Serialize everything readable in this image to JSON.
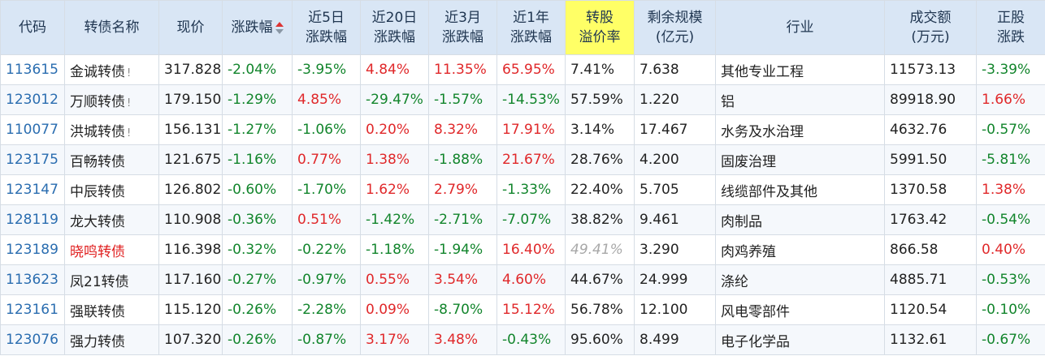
{
  "headers": [
    {
      "key": "code",
      "line1": "代码",
      "line2": ""
    },
    {
      "key": "name",
      "line1": "转债名称",
      "line2": ""
    },
    {
      "key": "price",
      "line1": "现价",
      "line2": ""
    },
    {
      "key": "chg",
      "line1": "涨跌幅",
      "line2": ""
    },
    {
      "key": "chg5d",
      "line1": "近5日",
      "line2": "涨跌幅"
    },
    {
      "key": "chg20d",
      "line1": "近20日",
      "line2": "涨跌幅"
    },
    {
      "key": "chg3m",
      "line1": "近3月",
      "line2": "涨跌幅"
    },
    {
      "key": "chg1y",
      "line1": "近1年",
      "line2": "涨跌幅"
    },
    {
      "key": "premium",
      "line1": "转股",
      "line2": "溢价率"
    },
    {
      "key": "remain",
      "line1": "剩余规模",
      "line2": "(亿元)"
    },
    {
      "key": "industry",
      "line1": "行业",
      "line2": ""
    },
    {
      "key": "volume",
      "line1": "成交额",
      "line2": "(万元)"
    },
    {
      "key": "stockchg",
      "line1": "正股",
      "line2": "涨跌"
    }
  ],
  "rows": [
    {
      "code": "113615",
      "name": "金诚转债",
      "flag": "!",
      "name_red": false,
      "price": "317.828",
      "chg": "-2.04%",
      "chg5d": "-3.95%",
      "chg20d": "4.84%",
      "chg3m": "11.35%",
      "chg1y": "65.95%",
      "premium": "7.41%",
      "premium_italic": false,
      "remain": "7.638",
      "industry": "其他专业工程",
      "volume": "11573.13",
      "stockchg": "-3.39%"
    },
    {
      "code": "123012",
      "name": "万顺转债",
      "flag": "!",
      "name_red": false,
      "price": "179.150",
      "chg": "-1.29%",
      "chg5d": "4.85%",
      "chg20d": "-29.47%",
      "chg3m": "-1.57%",
      "chg1y": "-14.53%",
      "premium": "57.59%",
      "premium_italic": false,
      "remain": "1.220",
      "industry": "铝",
      "volume": "89918.90",
      "stockchg": "1.66%"
    },
    {
      "code": "110077",
      "name": "洪城转债",
      "flag": "!",
      "name_red": false,
      "price": "156.131",
      "chg": "-1.27%",
      "chg5d": "-1.06%",
      "chg20d": "0.20%",
      "chg3m": "8.32%",
      "chg1y": "17.91%",
      "premium": "3.14%",
      "premium_italic": false,
      "remain": "17.467",
      "industry": "水务及水治理",
      "volume": "4632.76",
      "stockchg": "-0.57%"
    },
    {
      "code": "123175",
      "name": "百畅转债",
      "flag": "",
      "name_red": false,
      "price": "121.675",
      "chg": "-1.16%",
      "chg5d": "0.77%",
      "chg20d": "1.38%",
      "chg3m": "-1.88%",
      "chg1y": "21.67%",
      "premium": "28.76%",
      "premium_italic": false,
      "remain": "4.200",
      "industry": "固废治理",
      "volume": "5991.50",
      "stockchg": "-5.81%"
    },
    {
      "code": "123147",
      "name": "中辰转债",
      "flag": "",
      "name_red": false,
      "price": "126.802",
      "chg": "-0.60%",
      "chg5d": "-1.70%",
      "chg20d": "1.62%",
      "chg3m": "2.79%",
      "chg1y": "-1.33%",
      "premium": "22.40%",
      "premium_italic": false,
      "remain": "5.705",
      "industry": "线缆部件及其他",
      "volume": "1370.58",
      "stockchg": "1.38%"
    },
    {
      "code": "128119",
      "name": "龙大转债",
      "flag": "",
      "name_red": false,
      "price": "110.908",
      "chg": "-0.36%",
      "chg5d": "0.51%",
      "chg20d": "-1.42%",
      "chg3m": "-2.71%",
      "chg1y": "-7.07%",
      "premium": "38.82%",
      "premium_italic": false,
      "remain": "9.461",
      "industry": "肉制品",
      "volume": "1763.42",
      "stockchg": "-0.54%"
    },
    {
      "code": "123189",
      "name": "晓鸣转债",
      "flag": "",
      "name_red": true,
      "price": "116.398",
      "chg": "-0.32%",
      "chg5d": "-0.22%",
      "chg20d": "-1.18%",
      "chg3m": "-1.94%",
      "chg1y": "16.40%",
      "premium": "49.41%",
      "premium_italic": true,
      "remain": "3.290",
      "industry": "肉鸡养殖",
      "volume": "866.58",
      "stockchg": "0.40%"
    },
    {
      "code": "113623",
      "name": "凤21转债",
      "flag": "",
      "name_red": false,
      "price": "117.160",
      "chg": "-0.27%",
      "chg5d": "-0.97%",
      "chg20d": "0.55%",
      "chg3m": "3.54%",
      "chg1y": "4.60%",
      "premium": "44.67%",
      "premium_italic": false,
      "remain": "24.999",
      "industry": "涤纶",
      "volume": "4885.71",
      "stockchg": "-0.53%"
    },
    {
      "code": "123161",
      "name": "强联转债",
      "flag": "",
      "name_red": false,
      "price": "115.120",
      "chg": "-0.26%",
      "chg5d": "-2.28%",
      "chg20d": "0.09%",
      "chg3m": "-8.70%",
      "chg1y": "15.12%",
      "premium": "56.78%",
      "premium_italic": false,
      "remain": "12.100",
      "industry": "风电零部件",
      "volume": "1120.54",
      "stockchg": "-0.10%"
    },
    {
      "code": "123076",
      "name": "强力转债",
      "flag": "",
      "name_red": false,
      "price": "107.320",
      "chg": "-0.26%",
      "chg5d": "-0.87%",
      "chg20d": "3.17%",
      "chg3m": "3.48%",
      "chg1y": "-0.43%",
      "premium": "95.60%",
      "premium_italic": false,
      "remain": "8.499",
      "industry": "电子化学品",
      "volume": "1132.61",
      "stockchg": "-0.67%"
    }
  ]
}
